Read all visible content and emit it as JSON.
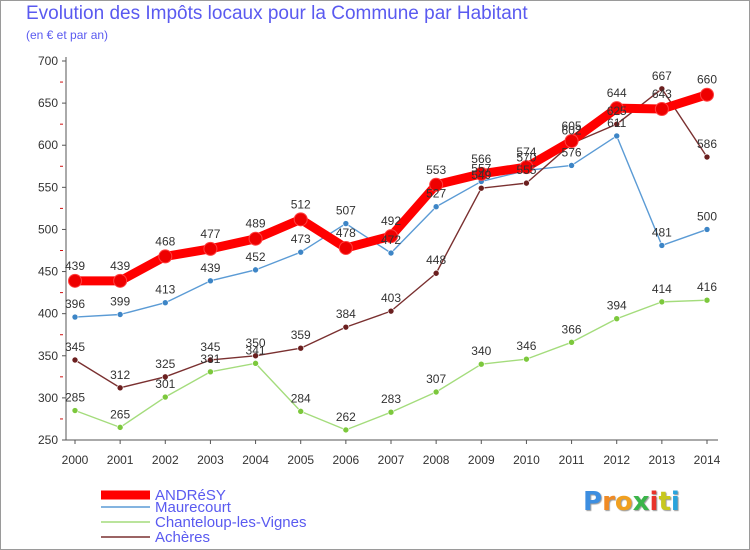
{
  "header": {
    "title": "Evolution des Impôts locaux pour la Commune par Habitant",
    "subtitle": "(en € et par an)"
  },
  "logo": {
    "text": "Proxiti",
    "letters": [
      "P",
      "r",
      "o",
      "x",
      "i",
      "t",
      "i"
    ]
  },
  "chart_data": {
    "type": "line",
    "title": "Evolution des Impôts locaux pour la Commune par Habitant",
    "subtitle": "(en € et par an)",
    "xlabel": "",
    "ylabel": "",
    "ylim": [
      250,
      700
    ],
    "yticks": [
      250,
      300,
      350,
      400,
      450,
      500,
      550,
      600,
      650,
      700
    ],
    "grid": false,
    "legend_position": "bottom-left",
    "categories": [
      "2000",
      "2001",
      "2002",
      "2003",
      "2004",
      "2005",
      "2006",
      "2007",
      "2008",
      "2009",
      "2010",
      "2011",
      "2012",
      "2013",
      "2014"
    ],
    "series": [
      {
        "name": "Maurecourt",
        "color": "#5b9bd5",
        "marker_color": "#3d85c6",
        "values": [
          396,
          399,
          413,
          439,
          452,
          473,
          507,
          472,
          527,
          557,
          570,
          576,
          611,
          481,
          500
        ],
        "labels": [
          "396",
          "399",
          "413",
          "439",
          "452",
          "473",
          "507",
          "472",
          "527",
          "557",
          "570",
          "576",
          "611",
          "481",
          "500"
        ]
      },
      {
        "name": "Chanteloup-les-Vignes",
        "color": "#a4dc7c",
        "marker_color": "#7cc83c",
        "values": [
          285,
          265,
          301,
          331,
          341,
          284,
          262,
          283,
          307,
          340,
          346,
          366,
          394,
          414,
          416
        ],
        "labels": [
          "285",
          "265",
          "301",
          "331",
          "341",
          "284",
          "262",
          "283",
          "307",
          "340",
          "346",
          "366",
          "394",
          "414",
          "416"
        ]
      },
      {
        "name": "Achères",
        "color": "#7a3030",
        "marker_color": "#6b1f1f",
        "values": [
          345,
          312,
          325,
          345,
          350,
          359,
          384,
          403,
          448,
          549,
          555,
          602,
          625,
          667,
          586
        ],
        "labels": [
          "345",
          "312",
          "325",
          "345",
          "350",
          "359",
          "384",
          "403",
          "448",
          "549",
          "555",
          "602",
          "625",
          "667",
          "586"
        ]
      },
      {
        "name": "ANDRéSY",
        "color": "#ff0000",
        "marker_color": "#ee0000",
        "values": [
          439,
          439,
          468,
          477,
          489,
          512,
          478,
          492,
          553,
          566,
          574,
          605,
          644,
          643,
          660
        ],
        "labels": [
          "439",
          "439",
          "468",
          "477",
          "489",
          "512",
          "478",
          "492",
          "553",
          "566",
          "574",
          "605",
          "644",
          "643",
          "660"
        ]
      }
    ],
    "legend": [
      "ANDRéSY",
      "Maurecourt",
      "Chanteloup-les-Vignes",
      "Achères"
    ]
  }
}
